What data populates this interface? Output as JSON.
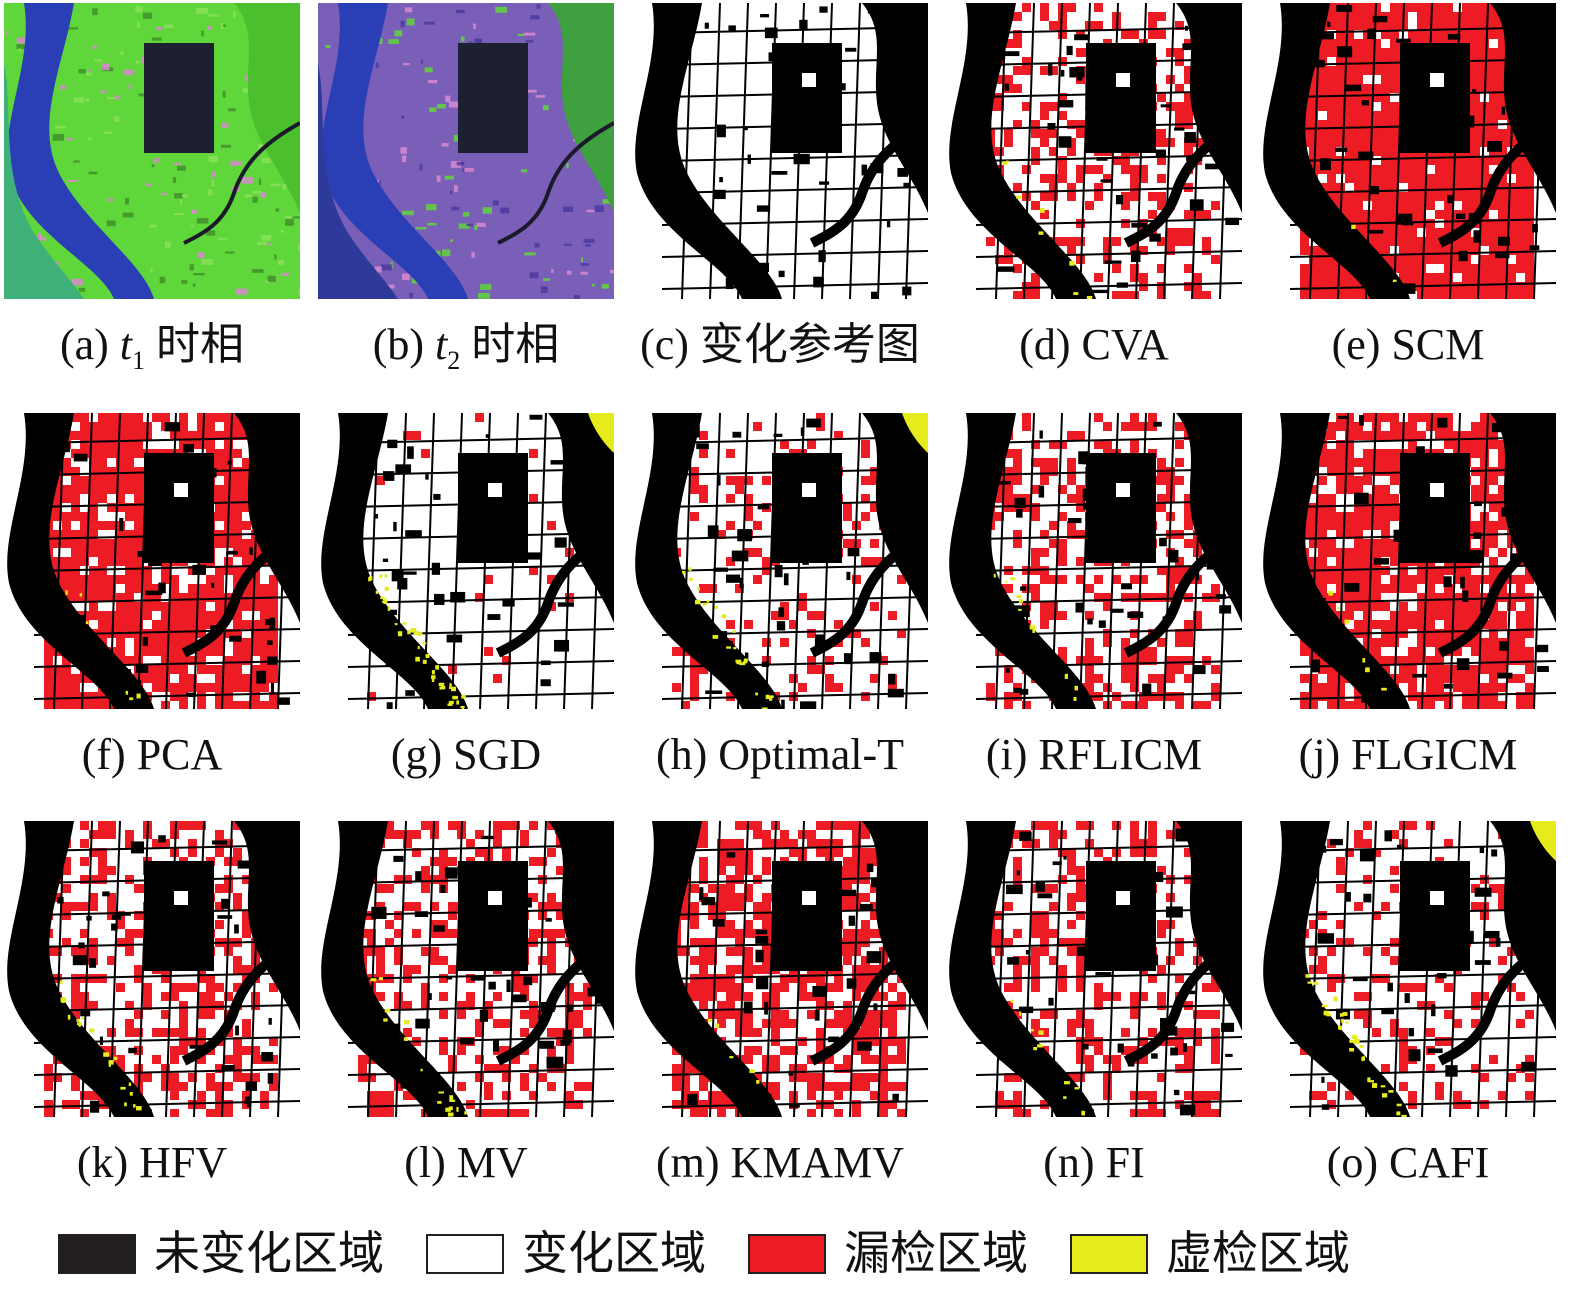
{
  "panels": [
    {
      "letter": "(a)",
      "var": "t",
      "sub": "1",
      "suffix": "时相",
      "style": "t1"
    },
    {
      "letter": "(b)",
      "var": "t",
      "sub": "2",
      "suffix": "时相",
      "style": "t2"
    },
    {
      "letter": "(c)",
      "text": "变化参考图",
      "style": "ref",
      "red": 0.0,
      "yellow": 0.0
    },
    {
      "letter": "(d)",
      "text": "CVA",
      "style": "map",
      "red": 0.35,
      "yellow": 0.05
    },
    {
      "letter": "(e)",
      "text": "SCM",
      "style": "map",
      "red": 0.92,
      "yellow": 0.01
    },
    {
      "letter": "(f)",
      "text": "PCA",
      "style": "map",
      "red": 0.8,
      "yellow": 0.04
    },
    {
      "letter": "(g)",
      "text": "SGD",
      "style": "map",
      "red": 0.03,
      "yellow": 0.25
    },
    {
      "letter": "(h)",
      "text": "Optimal-T",
      "style": "map",
      "red": 0.15,
      "yellow": 0.15
    },
    {
      "letter": "(i)",
      "text": "RFLICM",
      "style": "map",
      "red": 0.35,
      "yellow": 0.08
    },
    {
      "letter": "(j)",
      "text": "FLGICM",
      "style": "map",
      "red": 0.75,
      "yellow": 0.04
    },
    {
      "letter": "(k)",
      "text": "HFV",
      "style": "map",
      "red": 0.35,
      "yellow": 0.12
    },
    {
      "letter": "(l)",
      "text": "MV",
      "style": "map",
      "red": 0.38,
      "yellow": 0.1
    },
    {
      "letter": "(m)",
      "text": "KMAMV",
      "style": "map",
      "red": 0.6,
      "yellow": 0.03
    },
    {
      "letter": "(n)",
      "text": "FI",
      "style": "map",
      "red": 0.38,
      "yellow": 0.06
    },
    {
      "letter": "(o)",
      "text": "CAFI",
      "style": "map",
      "red": 0.18,
      "yellow": 0.18
    }
  ],
  "legend": [
    {
      "label": "未变化区域",
      "color": "#231f20"
    },
    {
      "label": "变化区域",
      "color": "#ffffff"
    },
    {
      "label": "漏检区域",
      "color": "#ed1c24"
    },
    {
      "label": "虚检区域",
      "color": "#e6ec1c"
    }
  ],
  "colors": {
    "unchanged": "#000000",
    "changed": "#ffffff",
    "missed": "#ed1c24",
    "false_alarm": "#e6ec1c",
    "water": "#2a3fb5",
    "vegetation": "#5fd63a",
    "urban": "#7a5fb8",
    "bare": "#d98ad0"
  }
}
